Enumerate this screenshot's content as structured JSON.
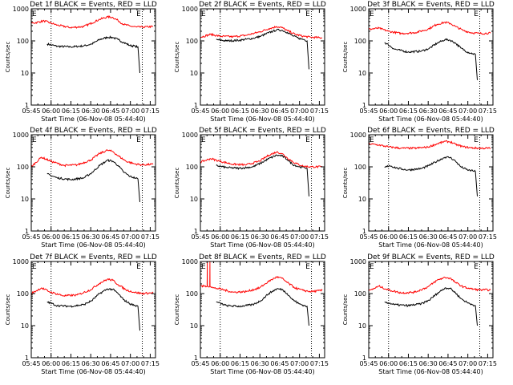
{
  "figure": {
    "xlabel": "Start Time (06-Nov-08 05:44:40)",
    "ylabel": "Counts/sec",
    "legend_text": "BLACK = Events, RED = LLD",
    "colors": {
      "events": "#000000",
      "lld": "#ff0000",
      "axes": "#000000"
    }
  },
  "chart_data": [
    {
      "type": "line",
      "title": "Det 1f BLACK = Events, RED = LLD",
      "x_unit": "minutes since 05:44:40",
      "x_ticks": [
        "05:45",
        "06:00",
        "06:15",
        "06:30",
        "06:45",
        "07:00",
        "07:15"
      ],
      "y_ticks": [
        "1",
        "10",
        "100",
        "1000"
      ],
      "ylim": [
        1,
        1000
      ],
      "log_y": true,
      "markers": [
        {
          "label": "E",
          "x_min": 0.3
        },
        {
          "label": "E",
          "x_min": 79.8
        }
      ],
      "dotted_lines_min": [
        15.3,
        84.3
      ],
      "series": [
        {
          "name": "Events",
          "color": "#000000",
          "x": [
            12.3,
            20,
            30,
            40,
            46,
            52,
            58,
            62,
            66,
            70,
            75,
            79,
            81,
            82.5
          ],
          "y": [
            80,
            68,
            65,
            70,
            80,
            110,
            130,
            128,
            110,
            90,
            72,
            68,
            65,
            10
          ]
        },
        {
          "name": "LLD",
          "color": "#ff0000",
          "x": [
            0.3,
            10,
            20,
            30,
            40,
            46,
            52,
            58,
            62,
            66,
            70,
            75,
            80,
            85,
            92.5
          ],
          "y": [
            350,
            420,
            310,
            260,
            280,
            360,
            470,
            560,
            540,
            430,
            330,
            290,
            270,
            270,
            280
          ]
        }
      ]
    },
    {
      "type": "line",
      "title": "Det 2f BLACK = Events, RED = LLD",
      "x_unit": "minutes since 05:44:40",
      "x_ticks": [
        "05:45",
        "06:00",
        "06:15",
        "06:30",
        "06:45",
        "07:00",
        "07:15"
      ],
      "y_ticks": [
        "1",
        "10",
        "100",
        "1000"
      ],
      "ylim": [
        1,
        1000
      ],
      "log_y": true,
      "markers": [
        {
          "label": "E",
          "x_min": 0.3
        },
        {
          "label": "E",
          "x_min": 79.8
        }
      ],
      "dotted_lines_min": [
        15.3,
        84.3
      ],
      "series": [
        {
          "name": "Events",
          "color": "#000000",
          "x": [
            12.3,
            20,
            30,
            40,
            46,
            52,
            58,
            62,
            66,
            70,
            75,
            79,
            81,
            82.5
          ],
          "y": [
            110,
            100,
            105,
            120,
            140,
            180,
            220,
            215,
            185,
            145,
            120,
            110,
            100,
            13
          ]
        },
        {
          "name": "LLD",
          "color": "#ff0000",
          "x": [
            0.3,
            8,
            15,
            25,
            35,
            45,
            52,
            58,
            62,
            66,
            72,
            78,
            84,
            92.5
          ],
          "y": [
            130,
            160,
            140,
            135,
            150,
            190,
            240,
            280,
            260,
            210,
            160,
            140,
            130,
            125
          ]
        }
      ]
    },
    {
      "type": "line",
      "title": "Det 3f BLACK = Events, RED = LLD",
      "x_unit": "minutes since 05:44:40",
      "x_ticks": [
        "05:45",
        "06:00",
        "06:15",
        "06:30",
        "06:45",
        "07:00",
        "07:15"
      ],
      "y_ticks": [
        "1",
        "10",
        "100",
        "1000"
      ],
      "ylim": [
        1,
        1000
      ],
      "log_y": true,
      "markers": [
        {
          "label": "E",
          "x_min": 0.3
        },
        {
          "label": "E",
          "x_min": 79.8
        }
      ],
      "dotted_lines_min": [
        15.3,
        84.3
      ],
      "series": [
        {
          "name": "Events",
          "color": "#000000",
          "x": [
            12.3,
            20,
            30,
            40,
            46,
            52,
            58,
            62,
            66,
            70,
            75,
            79,
            81,
            82.5
          ],
          "y": [
            90,
            55,
            45,
            48,
            58,
            85,
            110,
            105,
            85,
            60,
            45,
            40,
            38,
            6
          ]
        },
        {
          "name": "LLD",
          "color": "#ff0000",
          "x": [
            0.3,
            8,
            15,
            25,
            35,
            45,
            52,
            58,
            62,
            66,
            72,
            78,
            84,
            92.5
          ],
          "y": [
            230,
            250,
            200,
            170,
            180,
            230,
            330,
            380,
            350,
            280,
            210,
            180,
            170,
            175
          ]
        }
      ]
    },
    {
      "type": "line",
      "title": "Det 4f BLACK = Events, RED = LLD",
      "x_unit": "minutes since 05:44:40",
      "x_ticks": [
        "05:45",
        "06:00",
        "06:15",
        "06:30",
        "06:45",
        "07:00",
        "07:15"
      ],
      "y_ticks": [
        "1",
        "10",
        "100",
        "1000"
      ],
      "ylim": [
        1,
        1000
      ],
      "log_y": true,
      "markers": [
        {
          "label": "E",
          "x_min": 0.3
        },
        {
          "label": "E",
          "x_min": 79.8
        }
      ],
      "dotted_lines_min": [
        15.3,
        84.3
      ],
      "series": [
        {
          "name": "Events",
          "color": "#000000",
          "x": [
            12.3,
            20,
            30,
            40,
            46,
            52,
            58,
            62,
            66,
            70,
            75,
            79,
            81,
            82.5
          ],
          "y": [
            60,
            45,
            40,
            45,
            65,
            110,
            160,
            150,
            110,
            70,
            50,
            45,
            42,
            8
          ]
        },
        {
          "name": "LLD",
          "color": "#ff0000",
          "x": [
            0.3,
            8,
            15,
            25,
            35,
            45,
            52,
            58,
            62,
            66,
            72,
            78,
            84,
            92.5
          ],
          "y": [
            100,
            200,
            150,
            110,
            115,
            160,
            260,
            330,
            300,
            220,
            150,
            125,
            115,
            120
          ]
        }
      ]
    },
    {
      "type": "line",
      "title": "Det 5f BLACK = Events, RED = LLD",
      "x_unit": "minutes since 05:44:40",
      "x_ticks": [
        "05:45",
        "06:00",
        "06:15",
        "06:30",
        "06:45",
        "07:00",
        "07:15"
      ],
      "y_ticks": [
        "1",
        "10",
        "100",
        "1000"
      ],
      "ylim": [
        1,
        1000
      ],
      "log_y": true,
      "markers": [
        {
          "label": "E",
          "x_min": 0.3
        },
        {
          "label": "E",
          "x_min": 79.8
        }
      ],
      "dotted_lines_min": [
        15.3,
        84.3
      ],
      "series": [
        {
          "name": "Events",
          "color": "#000000",
          "x": [
            12.3,
            20,
            30,
            40,
            46,
            52,
            58,
            62,
            66,
            70,
            75,
            79,
            81,
            82.5
          ],
          "y": [
            110,
            95,
            90,
            100,
            130,
            180,
            230,
            220,
            170,
            120,
            100,
            95,
            90,
            12
          ]
        },
        {
          "name": "LLD",
          "color": "#ff0000",
          "x": [
            0.3,
            8,
            15,
            25,
            35,
            45,
            52,
            58,
            62,
            66,
            72,
            78,
            84,
            92.5
          ],
          "y": [
            140,
            180,
            150,
            120,
            115,
            150,
            230,
            290,
            260,
            190,
            130,
            105,
            100,
            100
          ]
        }
      ]
    },
    {
      "type": "line",
      "title": "Det 6f BLACK = Events, RED = LLD",
      "x_unit": "minutes since 05:44:40",
      "x_ticks": [
        "05:45",
        "06:00",
        "06:15",
        "06:30",
        "06:45",
        "07:00",
        "07:15"
      ],
      "y_ticks": [
        "1",
        "10",
        "100",
        "1000"
      ],
      "ylim": [
        1,
        1000
      ],
      "log_y": true,
      "markers": [
        {
          "label": "E",
          "x_min": 0.3
        },
        {
          "label": "E",
          "x_min": 79.8
        }
      ],
      "dotted_lines_min": [
        15.3,
        84.3
      ],
      "series": [
        {
          "name": "Events",
          "color": "#000000",
          "x": [
            12.3,
            16,
            22,
            30,
            40,
            46,
            52,
            58,
            62,
            66,
            70,
            75,
            79,
            81,
            82.5
          ],
          "y": [
            95,
            110,
            90,
            80,
            88,
            110,
            150,
            200,
            195,
            150,
            100,
            80,
            75,
            72,
            12
          ]
        },
        {
          "name": "LLD",
          "color": "#ff0000",
          "x": [
            0.3,
            8,
            15,
            25,
            35,
            45,
            52,
            58,
            62,
            66,
            72,
            78,
            84,
            92.5
          ],
          "y": [
            520,
            480,
            420,
            380,
            380,
            410,
            520,
            620,
            600,
            500,
            420,
            390,
            380,
            380
          ]
        }
      ]
    },
    {
      "type": "line",
      "title": "Det 7f BLACK = Events, RED = LLD",
      "x_unit": "minutes since 05:44:40",
      "x_ticks": [
        "05:45",
        "06:00",
        "06:15",
        "06:30",
        "06:45",
        "07:00",
        "07:15"
      ],
      "y_ticks": [
        "1",
        "10",
        "100",
        "1000"
      ],
      "ylim": [
        1,
        1000
      ],
      "log_y": true,
      "markers": [
        {
          "label": "E",
          "x_min": 0.3
        },
        {
          "label": "E",
          "x_min": 79.8
        }
      ],
      "dotted_lines_min": [
        15.3,
        84.3
      ],
      "series": [
        {
          "name": "Events",
          "color": "#000000",
          "x": [
            12.3,
            20,
            30,
            40,
            46,
            52,
            58,
            62,
            66,
            70,
            75,
            79,
            81,
            82.5
          ],
          "y": [
            55,
            42,
            40,
            45,
            60,
            100,
            140,
            135,
            100,
            65,
            48,
            42,
            40,
            7
          ]
        },
        {
          "name": "LLD",
          "color": "#ff0000",
          "x": [
            0.3,
            8,
            15,
            25,
            35,
            45,
            52,
            58,
            62,
            66,
            72,
            78,
            84,
            92.5
          ],
          "y": [
            100,
            150,
            110,
            85,
            90,
            130,
            210,
            280,
            260,
            190,
            130,
            110,
            100,
            105
          ]
        }
      ]
    },
    {
      "type": "line",
      "title": "Det 8f BLACK = Events, RED = LLD",
      "x_unit": "minutes since 05:44:40",
      "x_ticks": [
        "05:45",
        "06:00",
        "06:15",
        "06:30",
        "06:45",
        "07:00",
        "07:15"
      ],
      "y_ticks": [
        "1",
        "10",
        "100",
        "1000"
      ],
      "ylim": [
        1,
        1000
      ],
      "log_y": true,
      "markers": [
        {
          "label": "E",
          "x_min": 0.3
        },
        {
          "label": "E",
          "x_min": 79.8
        }
      ],
      "dotted_lines_min": [
        15.3,
        84.3
      ],
      "series": [
        {
          "name": "Events",
          "color": "#000000",
          "x": [
            12.3,
            20,
            30,
            40,
            46,
            52,
            58,
            62,
            66,
            70,
            75,
            79,
            81,
            82.5
          ],
          "y": [
            55,
            42,
            40,
            45,
            60,
            100,
            140,
            135,
            100,
            65,
            48,
            42,
            40,
            10
          ]
        },
        {
          "name": "LLD",
          "color": "#ff0000",
          "x": [
            0.3,
            5.4,
            5.5,
            5.6,
            7.4,
            7.5,
            7.6,
            10,
            15,
            25,
            35,
            45,
            52,
            58,
            62,
            66,
            72,
            78,
            84,
            92.5
          ],
          "y": [
            170,
            170,
            1000,
            170,
            170,
            1000,
            170,
            150,
            140,
            110,
            115,
            150,
            240,
            330,
            300,
            220,
            150,
            125,
            115,
            125
          ]
        }
      ]
    },
    {
      "type": "line",
      "title": "Det 9f BLACK = Events, RED = LLD",
      "x_unit": "minutes since 05:44:40",
      "x_ticks": [
        "05:45",
        "06:00",
        "06:15",
        "06:30",
        "06:45",
        "07:00",
        "07:15"
      ],
      "y_ticks": [
        "1",
        "10",
        "100",
        "1000"
      ],
      "ylim": [
        1,
        1000
      ],
      "log_y": true,
      "markers": [
        {
          "label": "E",
          "x_min": 0.3
        },
        {
          "label": "E",
          "x_min": 79.8
        }
      ],
      "dotted_lines_min": [
        15.3,
        84.3
      ],
      "series": [
        {
          "name": "Events",
          "color": "#000000",
          "x": [
            12.3,
            20,
            30,
            40,
            46,
            52,
            58,
            62,
            66,
            70,
            75,
            79,
            81,
            82.5
          ],
          "y": [
            55,
            45,
            42,
            48,
            62,
            100,
            150,
            145,
            105,
            70,
            52,
            45,
            42,
            10
          ]
        },
        {
          "name": "LLD",
          "color": "#ff0000",
          "x": [
            0.3,
            8,
            15,
            25,
            35,
            45,
            52,
            58,
            62,
            66,
            72,
            78,
            84,
            92.5
          ],
          "y": [
            120,
            170,
            130,
            105,
            110,
            160,
            260,
            320,
            300,
            220,
            160,
            140,
            130,
            130
          ]
        }
      ]
    }
  ]
}
